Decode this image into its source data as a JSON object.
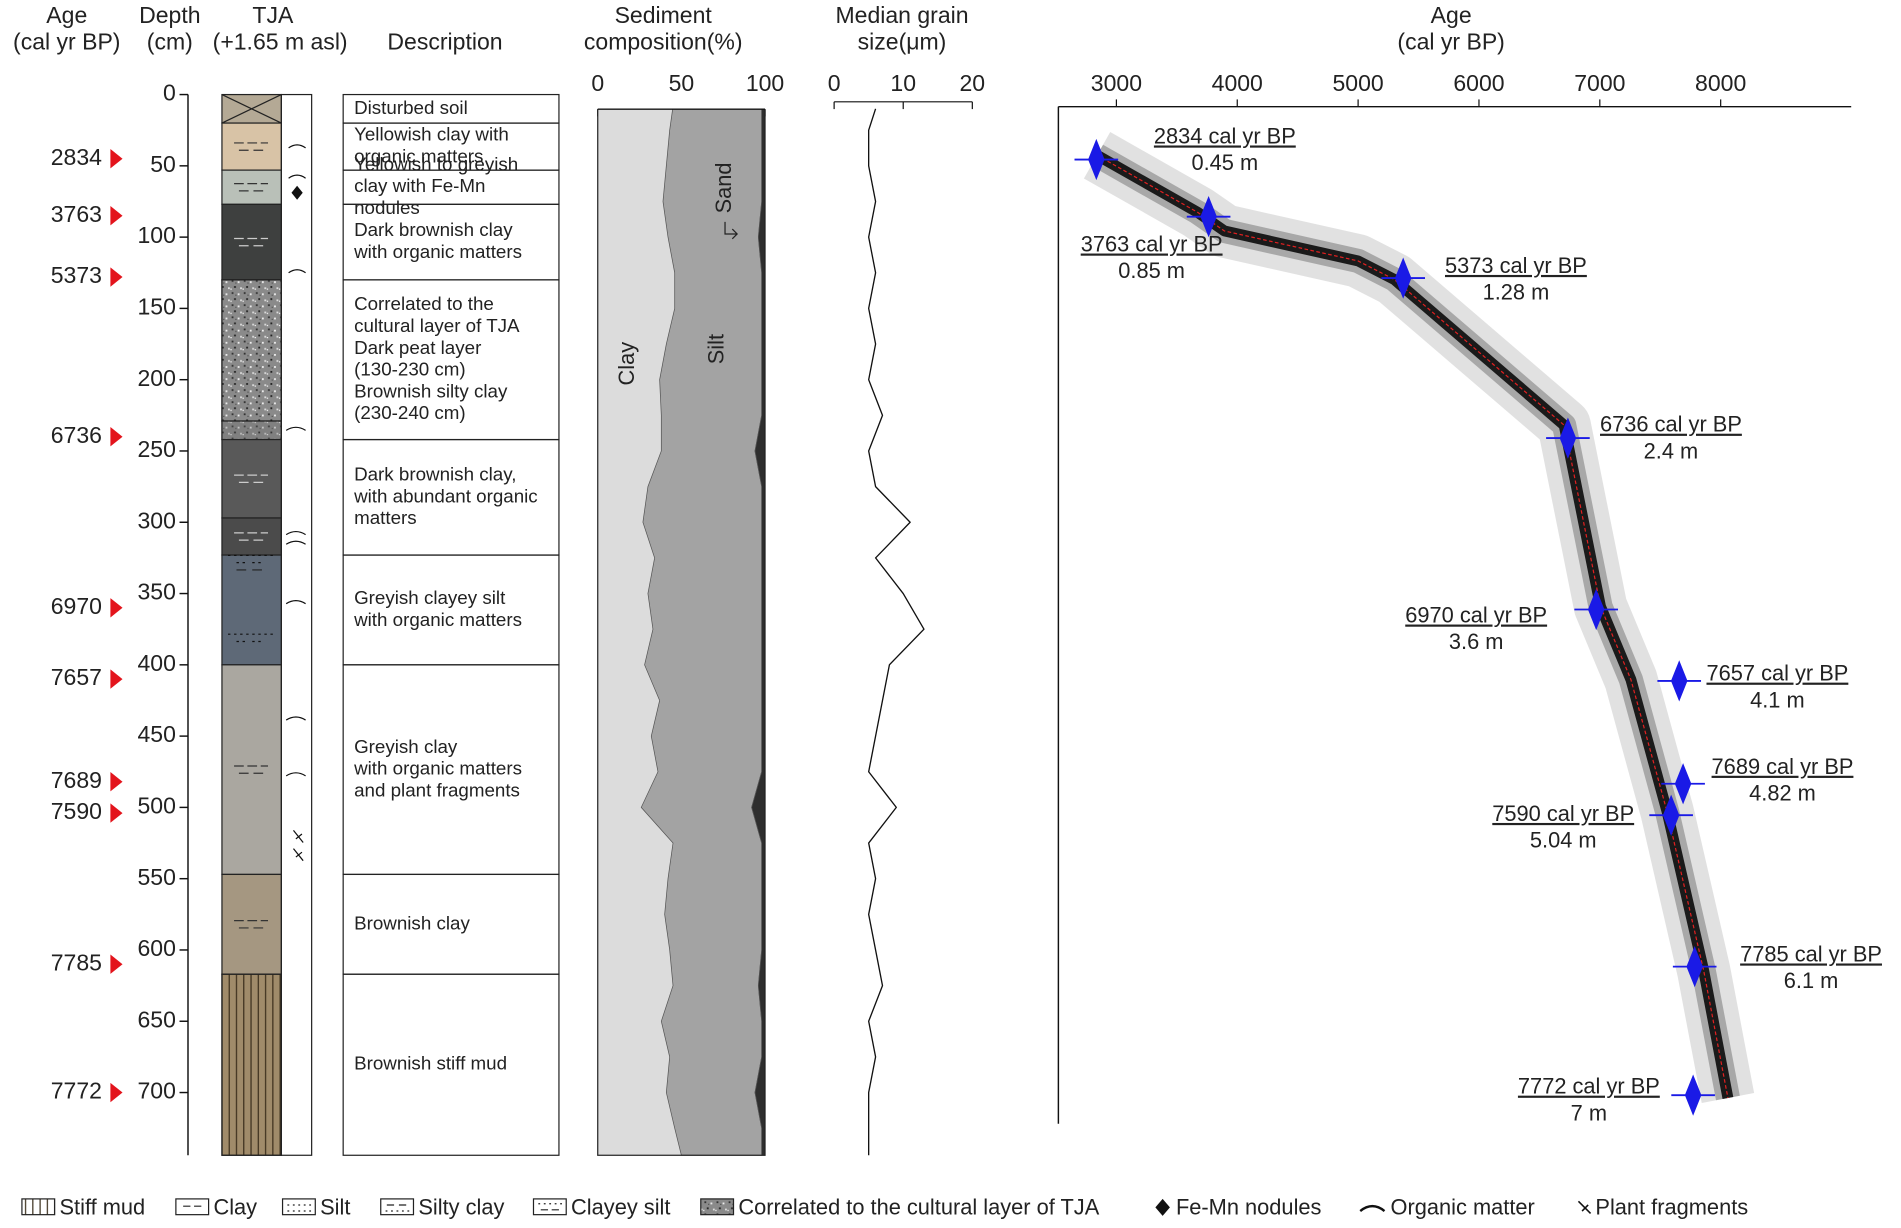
{
  "headers": {
    "age": [
      "Age",
      "(cal yr BP)"
    ],
    "depth": [
      "Depth",
      "(cm)"
    ],
    "core": [
      "TJA",
      "(+1.65 m asl)"
    ],
    "description": [
      "Description"
    ]
  },
  "depth_axis": {
    "ylim": [
      0,
      744
    ],
    "ticks": [
      0,
      50,
      100,
      150,
      200,
      250,
      300,
      350,
      400,
      450,
      500,
      550,
      600,
      650,
      700
    ]
  },
  "dated_samples": [
    {
      "age": 2834,
      "depth": 45
    },
    {
      "age": 3763,
      "depth": 85
    },
    {
      "age": 5373,
      "depth": 128
    },
    {
      "age": 6736,
      "depth": 240
    },
    {
      "age": 6970,
      "depth": 360
    },
    {
      "age": 7657,
      "depth": 410
    },
    {
      "age": 7689,
      "depth": 482
    },
    {
      "age": 7590,
      "depth": 504
    },
    {
      "age": 7785,
      "depth": 610
    },
    {
      "age": 7772,
      "depth": 700
    }
  ],
  "lithology": [
    {
      "top": 0,
      "bottom": 20,
      "pattern": "cross",
      "color": "#b4a995"
    },
    {
      "top": 20,
      "bottom": 53,
      "pattern": "clay",
      "color": "#d8c3a6"
    },
    {
      "top": 53,
      "bottom": 77,
      "pattern": "clay",
      "color": "#b9c0b8"
    },
    {
      "top": 77,
      "bottom": 130,
      "pattern": "clay",
      "color": "#3e403f"
    },
    {
      "top": 130,
      "bottom": 229,
      "pattern": "peat",
      "color": "#8c8c8c"
    },
    {
      "top": 229,
      "bottom": 242,
      "pattern": "peat",
      "color": "#6a6a6a"
    },
    {
      "top": 242,
      "bottom": 297,
      "pattern": "clay",
      "color": "#595959"
    },
    {
      "top": 297,
      "bottom": 323,
      "pattern": "clay",
      "color": "#4b4b4b"
    },
    {
      "top": 323,
      "bottom": 400,
      "pattern": "clayey-silt",
      "color": "#5e6977"
    },
    {
      "top": 400,
      "bottom": 547,
      "pattern": "clay",
      "color": "#aaa7a0"
    },
    {
      "top": 547,
      "bottom": 617,
      "pattern": "clay",
      "color": "#a59781"
    },
    {
      "top": 617,
      "bottom": 744,
      "pattern": "stiff-mud",
      "color": "#a08b6a"
    }
  ],
  "descriptions": [
    {
      "top": 0,
      "bottom": 20,
      "lines": [
        "Disturbed soil"
      ]
    },
    {
      "top": 20,
      "bottom": 53,
      "lines": [
        "Yellowish clay with",
        "organic matters"
      ]
    },
    {
      "top": 53,
      "bottom": 77,
      "lines": [
        "Yellowish to greyish",
        "clay with Fe-Mn",
        "nodules"
      ]
    },
    {
      "top": 77,
      "bottom": 130,
      "lines": [
        "Dark brownish clay",
        "with organic matters"
      ]
    },
    {
      "top": 130,
      "bottom": 242,
      "lines": [
        "Correlated to the",
        "cultural layer of TJA",
        "Dark peat layer",
        "(130-230 cm)",
        "Brownish silty clay",
        "(230-240 cm)"
      ]
    },
    {
      "top": 242,
      "bottom": 323,
      "lines": [
        "Dark brownish clay,",
        "with abundant organic",
        "matters"
      ]
    },
    {
      "top": 323,
      "bottom": 400,
      "lines": [
        "Greyish clayey silt",
        "with organic matters"
      ]
    },
    {
      "top": 400,
      "bottom": 547,
      "lines": [
        "Greyish clay",
        "with organic matters",
        "and plant fragments"
      ]
    },
    {
      "top": 547,
      "bottom": 617,
      "lines": [
        "Brownish clay"
      ]
    },
    {
      "top": 617,
      "bottom": 744,
      "lines": [
        "Brownish stiff mud"
      ]
    }
  ],
  "composition": {
    "type": "area",
    "title": [
      "Sediment",
      "composition(%)"
    ],
    "xlim": [
      0,
      100
    ],
    "xticks": [
      0,
      50,
      100
    ],
    "depth": [
      0,
      25,
      50,
      75,
      100,
      125,
      150,
      175,
      200,
      225,
      250,
      275,
      300,
      325,
      350,
      375,
      400,
      425,
      450,
      475,
      500,
      525,
      550,
      575,
      600,
      625,
      650,
      675,
      700,
      725,
      744
    ],
    "series": [
      {
        "name": "Clay",
        "color": "#dcdcdc",
        "values": [
          46,
          43,
          41,
          39,
          42,
          46,
          46,
          41,
          37,
          38,
          38,
          30,
          27,
          34,
          30,
          33,
          28,
          37,
          32,
          36,
          26,
          45,
          42,
          40,
          43,
          45,
          38,
          43,
          41,
          46,
          50
        ]
      },
      {
        "name": "Silt",
        "color": "#a3a3a3",
        "values": [
          52,
          55,
          57,
          59,
          54,
          52,
          52,
          57,
          61,
          60,
          56,
          68,
          71,
          64,
          68,
          65,
          70,
          61,
          66,
          62,
          66,
          53,
          56,
          58,
          55,
          51,
          60,
          55,
          53,
          52,
          48
        ]
      },
      {
        "name": "Sand",
        "color": "#2e2e2e",
        "values": [
          2,
          2,
          2,
          2,
          4,
          2,
          2,
          2,
          2,
          2,
          6,
          2,
          2,
          2,
          2,
          2,
          2,
          2,
          2,
          2,
          8,
          2,
          2,
          2,
          2,
          4,
          2,
          2,
          6,
          2,
          2
        ]
      }
    ]
  },
  "grain_size": {
    "type": "line",
    "title": [
      "Median grain",
      "size(μm)"
    ],
    "xlim": [
      0,
      20
    ],
    "xticks": [
      0,
      10,
      20
    ],
    "color": "#111111",
    "depth": [
      10,
      25,
      50,
      75,
      100,
      125,
      150,
      175,
      200,
      225,
      250,
      275,
      300,
      325,
      350,
      375,
      400,
      425,
      450,
      475,
      500,
      525,
      550,
      575,
      600,
      625,
      650,
      675,
      700,
      725,
      744
    ],
    "values": [
      6,
      5,
      5,
      6,
      5,
      6,
      5,
      6,
      5,
      7,
      5,
      6,
      11,
      6,
      10,
      13,
      8,
      7,
      6,
      5,
      9,
      5,
      6,
      5,
      6,
      7,
      5,
      6,
      5,
      5,
      5
    ]
  },
  "age_model": {
    "type": "scatter",
    "title": [
      "Age",
      "(cal yr BP)"
    ],
    "xlim": [
      2520,
      9080
    ],
    "xticks": [
      3000,
      4000,
      5000,
      6000,
      7000,
      8000
    ],
    "ylim": [
      0.08,
      7.2
    ],
    "color": "#1a1ae6",
    "dates": [
      {
        "age": 2834,
        "depth": 0.45,
        "label": "2834 cal yr BP",
        "depth_label": "0.45 m"
      },
      {
        "age": 3763,
        "depth": 0.85,
        "label": "3763 cal yr BP",
        "depth_label": "0.85 m"
      },
      {
        "age": 5373,
        "depth": 1.28,
        "label": "5373 cal yr BP",
        "depth_label": "1.28 m"
      },
      {
        "age": 6736,
        "depth": 2.4,
        "label": "6736 cal yr BP",
        "depth_label": "2.4 m"
      },
      {
        "age": 6970,
        "depth": 3.6,
        "label": "6970 cal yr BP",
        "depth_label": "3.6 m"
      },
      {
        "age": 7657,
        "depth": 4.1,
        "label": "7657 cal yr BP",
        "depth_label": "4.1 m"
      },
      {
        "age": 7689,
        "depth": 4.82,
        "label": "7689 cal yr BP",
        "depth_label": "4.82 m"
      },
      {
        "age": 7590,
        "depth": 5.04,
        "label": "7590 cal yr BP",
        "depth_label": "5.04 m"
      },
      {
        "age": 7785,
        "depth": 6.1,
        "label": "7785 cal yr BP",
        "depth_label": "6.1 m"
      },
      {
        "age": 7772,
        "depth": 7,
        "label": "7772 cal yr BP",
        "depth_label": "7 m"
      }
    ],
    "median": {
      "age": [
        2840,
        3673,
        3894,
        5000,
        5300,
        6705,
        7006,
        7257,
        7558,
        7860,
        8060
      ],
      "depth": [
        0.42,
        0.82,
        0.95,
        1.16,
        1.29,
        2.31,
        3.58,
        4.09,
        5.02,
        6.13,
        7.02
      ]
    }
  },
  "legend": [
    {
      "label": "Stiff  mud",
      "symbol": "stiff-mud"
    },
    {
      "label": "Clay",
      "symbol": "clay"
    },
    {
      "label": "Silt",
      "symbol": "silt"
    },
    {
      "label": "Silty clay",
      "symbol": "silty-clay"
    },
    {
      "label": "Clayey silt",
      "symbol": "clayey-silt"
    },
    {
      "label": "Correlated to the cultural layer of TJA",
      "symbol": "peat"
    },
    {
      "label": "Fe-Mn nodules",
      "symbol": "fe-mn"
    },
    {
      "label": "Organic matter",
      "symbol": "organic"
    },
    {
      "label": "Plant fragments",
      "symbol": "plant"
    }
  ]
}
